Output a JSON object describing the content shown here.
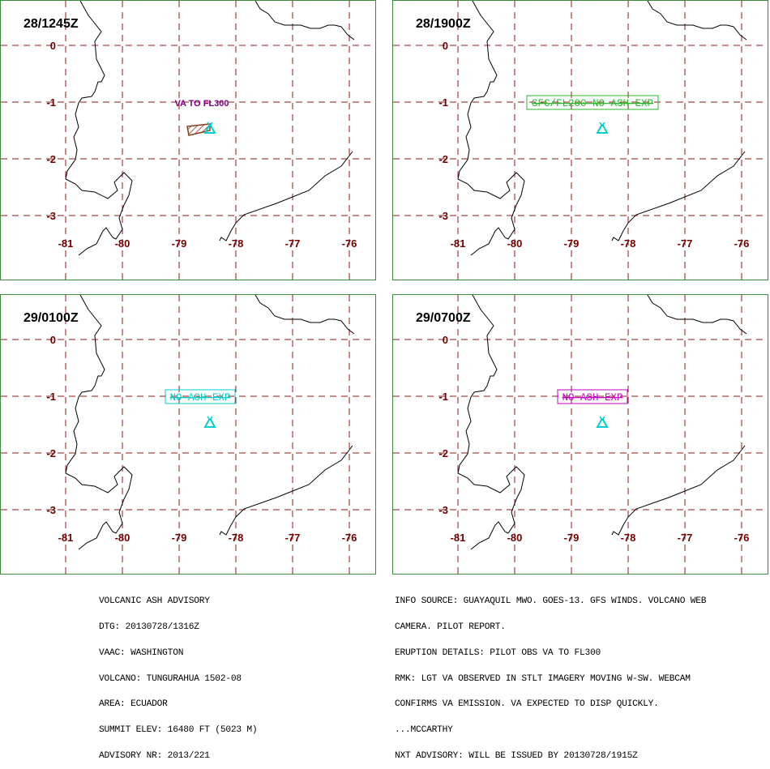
{
  "panels": [
    {
      "title": "28/1245Z",
      "label": "VA TO FL300",
      "label_style": "plain",
      "label_color": "#800080",
      "ash_polygon": true,
      "volcano_color": "#00d0d0"
    },
    {
      "title": "28/1900Z",
      "label": "SFC/FL200 NO ASH EXP",
      "label_style": "box",
      "label_color": "#2ab52a",
      "ash_polygon": false,
      "volcano_color": "#00d0d0"
    },
    {
      "title": "29/0100Z",
      "label": "NO ASH EXP",
      "label_style": "box",
      "label_color": "#00cccc",
      "ash_polygon": false,
      "volcano_color": "#00d0d0"
    },
    {
      "title": "29/0700Z",
      "label": "NO ASH EXP",
      "label_style": "box",
      "label_color": "#c000c0",
      "ash_polygon": false,
      "volcano_color": "#00d0d0"
    }
  ],
  "map_axes": {
    "lon_ticks": [
      "-81",
      "-80",
      "-79",
      "-78",
      "-77",
      "-76"
    ],
    "lat_ticks": [
      "0",
      "-1",
      "-2",
      "-3"
    ]
  },
  "advisory_left": [
    "VOLCANIC ASH ADVISORY",
    "DTG: 20130728/1316Z",
    "VAAC: WASHINGTON",
    "VOLCANO: TUNGURAHUA 1502-08",
    "AREA: ECUADOR",
    "SUMMIT ELEV: 16480 FT (5023 M)",
    "ADVISORY NR: 2013/221"
  ],
  "advisory_right": [
    "INFO SOURCE: GUAYAQUIL MWO. GOES-13. GFS WINDS. VOLCANO WEB",
    "CAMERA. PILOT REPORT.",
    "ERUPTION DETAILS: PILOT OBS VA TO FL300",
    "RMK: LGT VA OBSERVED IN STLT IMAGERY MOVING W-SW. WEBCAM",
    "CONFIRMS VA EMISSION. VA EXPECTED TO DISP QUICKLY.",
    "...MCCARTHY",
    "NXT ADVISORY: WILL BE ISSUED BY 20130728/1915Z"
  ],
  "colors": {
    "panel_border": "#3c8a3c",
    "grid": "#8b1a1a",
    "tick_labels": "#700000",
    "coastline": "#000000",
    "ash_polygon": "#8b3a1a"
  },
  "icons": {
    "volcano": "volcano-icon"
  }
}
